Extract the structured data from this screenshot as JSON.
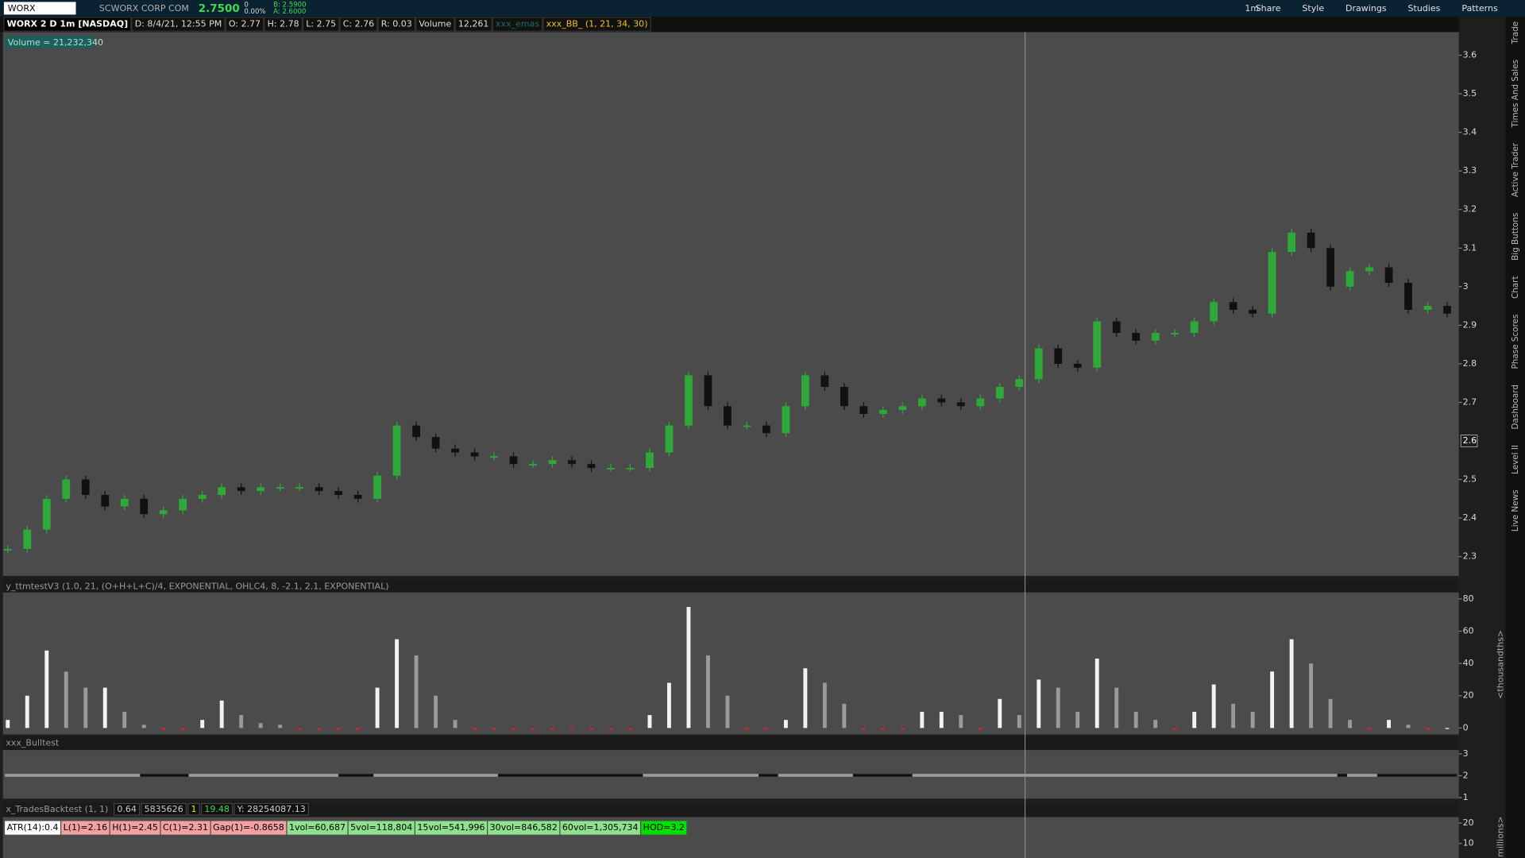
{
  "toolbar": {
    "symbol": "WORX",
    "company": "SCWORX CORP COM",
    "last": "2.7500",
    "change": "0",
    "change_pct": "0.00%",
    "bid": "B: 2.5900",
    "ask": "A: 2.6000",
    "time_frame": "1m",
    "buttons": [
      "Share",
      "Style",
      "Drawings",
      "Studies",
      "Patterns"
    ]
  },
  "info": [
    "WORX 2 D 1m [NASDAQ]",
    "D: 8/4/21, 12:55 PM",
    "O: 2.77",
    "H: 2.78",
    "L: 2.75",
    "C: 2.76",
    "R: 0.03",
    "Volume",
    "12,261",
    "xxx_emas",
    "xxx_BB_ (1, 21, 34, 30)"
  ],
  "volume_label": "Volume = 21,232,340",
  "price_chart": {
    "type": "candlestick",
    "up_color": "#2fa83a",
    "down_color": "#111111",
    "values": [
      2.32,
      2.37,
      2.45,
      2.5,
      2.46,
      2.43,
      2.45,
      2.41,
      2.42,
      2.45,
      2.46,
      2.48,
      2.47,
      2.48,
      2.48,
      2.48,
      2.47,
      2.46,
      2.45,
      2.51,
      2.64,
      2.61,
      2.58,
      2.57,
      2.56,
      2.56,
      2.54,
      2.54,
      2.55,
      2.54,
      2.53,
      2.53,
      2.53,
      2.57,
      2.64,
      2.77,
      2.69,
      2.64,
      2.64,
      2.62,
      2.69,
      2.77,
      2.74,
      2.69,
      2.67,
      2.68,
      2.69,
      2.71,
      2.7,
      2.69,
      2.71,
      2.74,
      2.76,
      2.84,
      2.8,
      2.79,
      2.91,
      2.88,
      2.86,
      2.88,
      2.88,
      2.91,
      2.96,
      2.94,
      2.93,
      3.09,
      3.14,
      3.1,
      3.0,
      3.04,
      3.05,
      3.01,
      2.94,
      2.95,
      2.93
    ],
    "ylim": [
      2.25,
      3.66
    ],
    "yticks": [
      2.3,
      2.4,
      2.5,
      2.7,
      2.8,
      2.9,
      3,
      3.1,
      3.2,
      3.3,
      3.4,
      3.5,
      3.6
    ],
    "price_marker": 2.6
  },
  "oscillator": {
    "type": "histogram",
    "title": "y_ttmtestV3 (1.0, 21, (O+H+L+C)/4, EXPONENTIAL, OHLC4, 8, -2.1, 2.1, EXPONENTIAL)",
    "unit_label": "<thousandths>",
    "values": [
      5,
      20,
      48,
      35,
      25,
      25,
      10,
      2,
      -1,
      -1,
      5,
      17,
      8,
      3,
      2,
      -1,
      -1,
      -1,
      -1,
      25,
      55,
      45,
      20,
      5,
      -1,
      -1,
      -1,
      -1,
      -1,
      -1,
      -1,
      -1,
      -1,
      8,
      28,
      75,
      45,
      20,
      -1,
      -1,
      5,
      37,
      28,
      15,
      -1,
      -1,
      -1,
      10,
      10,
      8,
      -1,
      18,
      8,
      30,
      25,
      10,
      43,
      25,
      10,
      5,
      -1,
      10,
      27,
      15,
      10,
      35,
      55,
      40,
      18,
      5,
      -1,
      5,
      2,
      -1,
      0
    ],
    "ylim": [
      -4,
      84
    ],
    "yticks": [
      0,
      20,
      40,
      60,
      80
    ]
  },
  "bulltest": {
    "title": "xxx_Bulltest",
    "ylim": [
      0.95,
      3.18
    ],
    "yticks": [
      1,
      2,
      3
    ]
  },
  "trades_backtest": {
    "title": "x_TradesBacktest (1, 1)",
    "fields": [
      "0.64",
      "5835626",
      "1",
      "19.48",
      "Y: 28254087.13"
    ]
  },
  "labels": [
    {
      "text": "ATR(14):0.4",
      "color": "#ffffff"
    },
    {
      "text": "L(1)=2.16",
      "color": "#f2a0a0"
    },
    {
      "text": "H(1)=2.45",
      "color": "#f2a0a0"
    },
    {
      "text": "C(1)=2.31",
      "color": "#f2a0a0"
    },
    {
      "text": "Gap(1)=-0.8658",
      "color": "#f2a0a0"
    },
    {
      "text": "1vol=60,687",
      "color": "#8fe08f"
    },
    {
      "text": "5vol=118,804",
      "color": "#8fe08f"
    },
    {
      "text": "15vol=541,996",
      "color": "#8fe08f"
    },
    {
      "text": "30vol=846,582",
      "color": "#8fe08f"
    },
    {
      "text": "60vol=1,305,734",
      "color": "#8fe08f"
    },
    {
      "text": "HOD=3.2",
      "color": "#00e000"
    }
  ],
  "volume_panel": {
    "unit_label": "millions>",
    "ylim": [
      2.9,
      22.9
    ],
    "yticks": [
      10,
      20
    ]
  },
  "sidebar_tabs": [
    "Trade",
    "Times And Sales",
    "Active Trader",
    "Big Buttons",
    "Chart",
    "Phase Scores",
    "Dashboard",
    "Level II",
    "Live News"
  ]
}
